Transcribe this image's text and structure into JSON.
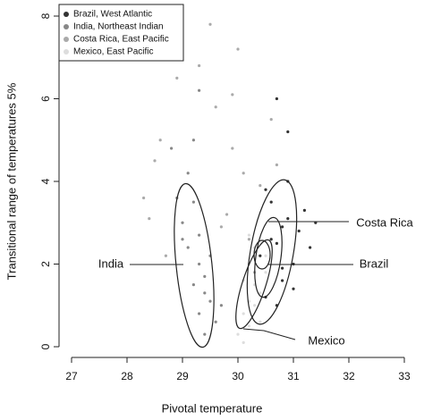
{
  "chart_data": {
    "type": "scatter",
    "x_label": "Pivotal temperature",
    "y_label": "Transitional range of temperatures 5%",
    "xlim": [
      27,
      33
    ],
    "xticks": [
      27,
      28,
      29,
      30,
      31,
      32,
      33
    ],
    "ylim": [
      0,
      8
    ],
    "yticks": [
      0,
      2,
      4,
      6,
      8
    ],
    "legend": "top-left",
    "series": [
      {
        "name": "Costa Rica, East Pacific",
        "color": "#aaaaaa",
        "x": [
          28.5,
          29.8,
          30.2,
          29.6,
          28.9,
          30.4,
          29.9,
          28.4,
          30.0,
          29.7,
          30.6,
          28.7,
          29.5,
          30.3,
          28.6,
          29.9,
          30.1,
          29.3,
          28.3,
          30.7
        ],
        "values": [
          4.5,
          3.2,
          2.6,
          5.8,
          6.5,
          3.9,
          4.8,
          3.1,
          7.2,
          2.9,
          5.5,
          2.2,
          7.8,
          1.8,
          5.0,
          6.1,
          4.2,
          6.8,
          3.6,
          4.4
        ]
      },
      {
        "name": "India, Northeast Indian",
        "color": "#888888",
        "x": [
          29.4,
          29.3,
          29.2,
          29.5,
          29.1,
          29.3,
          29.4,
          29.0,
          29.2,
          29.6,
          29.3,
          29.1,
          28.9,
          29.4,
          29.2,
          29.5,
          28.8,
          29.7,
          29.3,
          29.0
        ],
        "values": [
          0.3,
          0.8,
          1.5,
          1.1,
          2.4,
          2.0,
          1.7,
          3.0,
          3.5,
          0.6,
          2.7,
          4.2,
          3.6,
          1.3,
          5.0,
          2.2,
          4.8,
          1.0,
          6.2,
          2.6
        ]
      },
      {
        "name": "Brazil, West Atlantic",
        "color": "#333333",
        "x": [
          30.5,
          30.7,
          30.9,
          31.0,
          30.8,
          30.6,
          31.1,
          30.4,
          30.9,
          31.2,
          30.7,
          30.8,
          31.0,
          30.6,
          30.5,
          31.3,
          30.9,
          30.7,
          31.4,
          30.8
        ],
        "values": [
          1.2,
          2.5,
          3.1,
          2.0,
          1.6,
          3.5,
          2.8,
          2.2,
          4.0,
          3.3,
          1.0,
          2.9,
          1.4,
          2.6,
          3.8,
          2.4,
          5.2,
          6.0,
          3.0,
          1.9
        ]
      },
      {
        "name": "Mexico, East Pacific",
        "color": "#dddddd",
        "x": [
          30.1,
          30.2,
          30.3,
          30.1,
          30.4,
          30.2,
          30.3,
          30.5,
          30.1,
          30.2,
          30.4,
          30.3,
          30.0,
          30.2,
          30.5
        ],
        "values": [
          0.1,
          0.5,
          1.0,
          1.6,
          1.3,
          2.0,
          2.4,
          1.8,
          0.8,
          2.7,
          0.6,
          1.5,
          0.3,
          1.1,
          2.2
        ]
      }
    ],
    "legend_order": [
      2,
      1,
      0,
      3
    ],
    "annotations": [
      "India",
      "Costa Rica",
      "Brazil",
      "Mexico"
    ]
  }
}
